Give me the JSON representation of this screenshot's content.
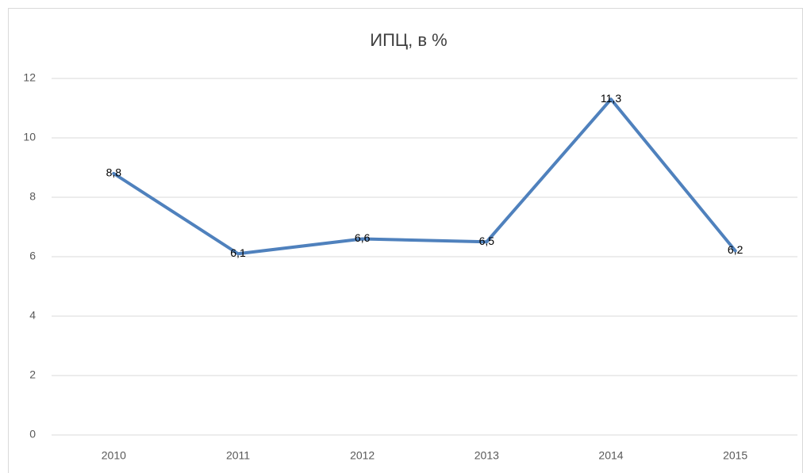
{
  "chart_data": {
    "type": "line",
    "title": "ИПЦ, в %",
    "categories": [
      "2010",
      "2011",
      "2012",
      "2013",
      "2014",
      "2015"
    ],
    "values": [
      8.8,
      6.1,
      6.6,
      6.5,
      11.3,
      6.2
    ],
    "value_labels": [
      "8,8",
      "6,1",
      "6,6",
      "6,5",
      "11,3",
      "6,2"
    ],
    "color": "#4f81bd",
    "ylim": [
      0,
      12
    ],
    "yticks": [
      0,
      2,
      4,
      6,
      8,
      10,
      12
    ],
    "grid": true
  }
}
